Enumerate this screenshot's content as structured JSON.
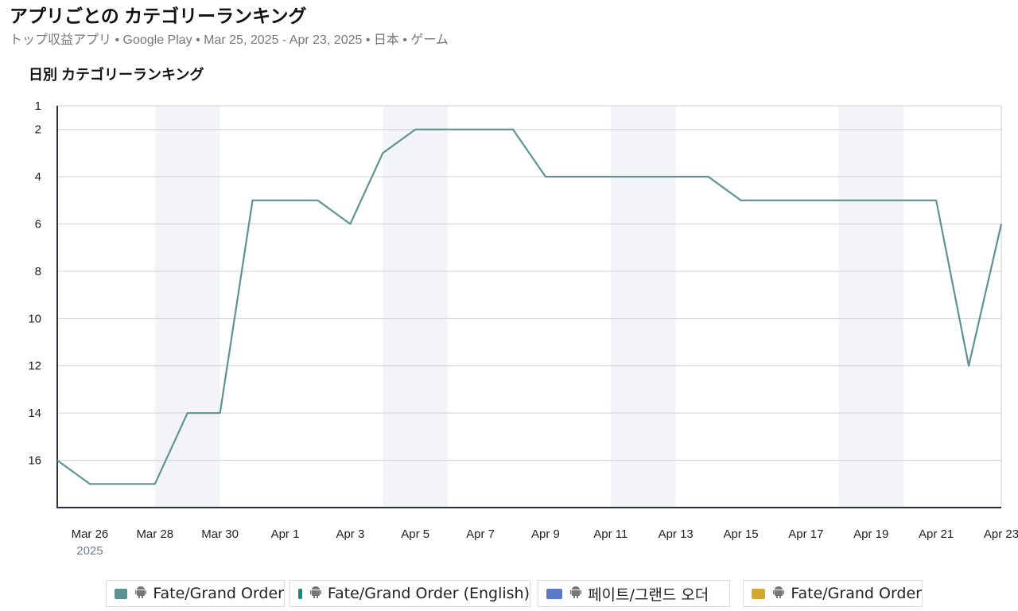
{
  "chart_data": {
    "type": "line",
    "title": "アプリごとの カテゴリーランキング",
    "subtitle": "トップ収益アプリ • Google Play • Mar 25, 2025 - Apr 23, 2025 • 日本 • ゲーム",
    "chart_title": "日別 カテゴリーランキング",
    "year_label": "2025",
    "categories": [
      null,
      "Mar 26",
      null,
      "Mar 28",
      null,
      "Mar 30",
      null,
      "Apr 1",
      null,
      "Apr 3",
      null,
      "Apr 5",
      null,
      "Apr 7",
      null,
      "Apr 9",
      null,
      "Apr 11",
      null,
      "Apr 13",
      null,
      "Apr 15",
      null,
      "Apr 17",
      null,
      "Apr 19",
      null,
      "Apr 21",
      null,
      "Apr 23"
    ],
    "series": [
      {
        "name": "Fate/Grand Order",
        "color": "#5f9393",
        "values": [
          16,
          17,
          17,
          17,
          14,
          14,
          5,
          5,
          5,
          6,
          3,
          2,
          2,
          2,
          2,
          4,
          4,
          4,
          4,
          4,
          4,
          5,
          5,
          5,
          5,
          5,
          5,
          5,
          12,
          6
        ]
      },
      {
        "name": "Fate/Grand Order (English)",
        "color": "#138a84"
      },
      {
        "name": "페이트/그랜드 오더",
        "color": "#5a78c8"
      },
      {
        "name": "Fate/Grand Order",
        "color": "#d4a830"
      }
    ],
    "ylim": [
      1,
      18
    ],
    "y_reversed": true,
    "yticks": [
      1,
      2,
      4,
      6,
      8,
      10,
      12,
      14,
      16
    ],
    "grid": true
  }
}
